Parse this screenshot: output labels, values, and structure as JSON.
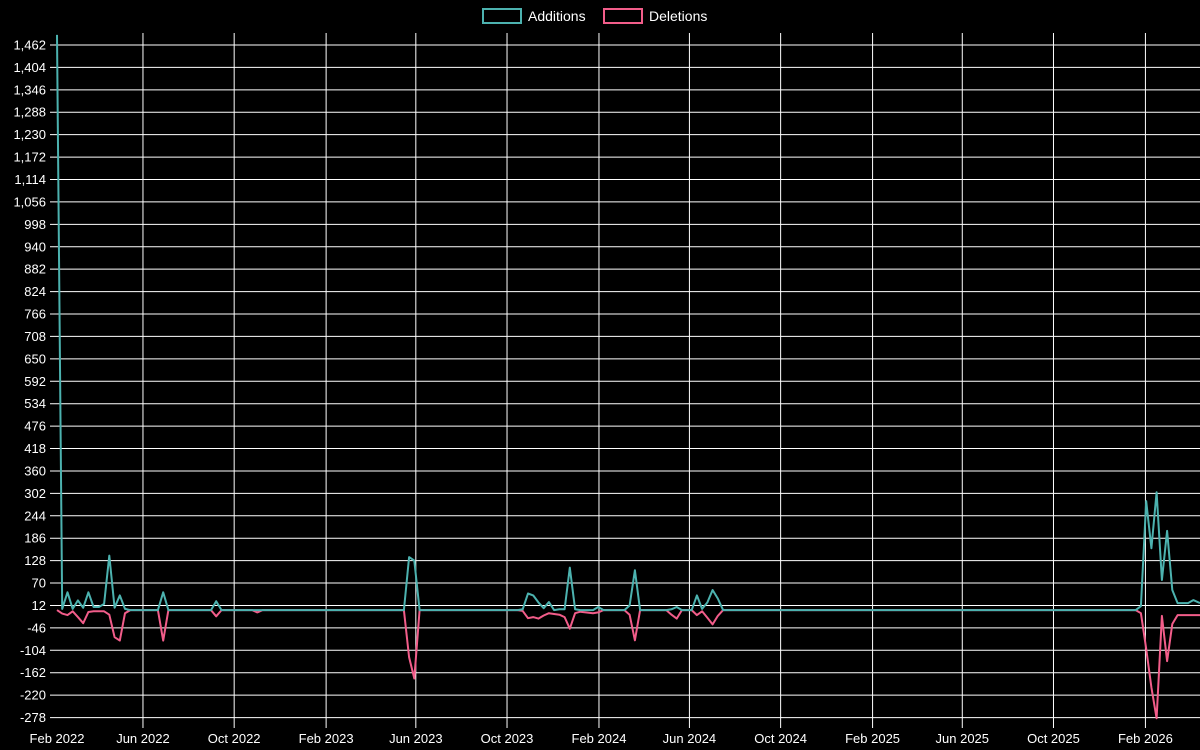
{
  "colors": {
    "background": "#000000",
    "grid": "#ffffff",
    "text": "#ffffff",
    "additions": "#4cb2af",
    "deletions": "#f25d8a"
  },
  "legend": {
    "items": [
      {
        "label": "Additions",
        "color": "#4cb2af"
      },
      {
        "label": "Deletions",
        "color": "#f25d8a"
      }
    ]
  },
  "chart_data": {
    "type": "line",
    "title": "",
    "xlabel": "",
    "ylabel": "",
    "x_axis": {
      "unit": "days since first week (Feb 2022)",
      "ticks": [
        {
          "day": 0,
          "label": "Feb 2022"
        },
        {
          "day": 115,
          "label": "Jun 2022"
        },
        {
          "day": 237,
          "label": "Oct 2022"
        },
        {
          "day": 360,
          "label": "Feb 2023"
        },
        {
          "day": 480,
          "label": "Jun 2023"
        },
        {
          "day": 602,
          "label": "Oct 2023"
        },
        {
          "day": 725,
          "label": "Feb 2024"
        },
        {
          "day": 846,
          "label": "Jun 2024"
        },
        {
          "day": 968,
          "label": "Oct 2024"
        },
        {
          "day": 1091,
          "label": "Feb 2025"
        },
        {
          "day": 1211,
          "label": "Jun 2025"
        },
        {
          "day": 1333,
          "label": "Oct 2025"
        },
        {
          "day": 1456,
          "label": "Feb 2026"
        }
      ],
      "xlim_days": [
        0,
        1529
      ]
    },
    "y_axis": {
      "ticks": [
        -278,
        -220,
        -162,
        -104,
        -46,
        12,
        70,
        128,
        186,
        244,
        302,
        360,
        418,
        476,
        534,
        592,
        650,
        708,
        766,
        824,
        882,
        940,
        998,
        1056,
        1114,
        1172,
        1230,
        1288,
        1346,
        1404,
        1462
      ],
      "ylim": [
        -305,
        1493
      ],
      "grid": true
    },
    "legend_position": "top-center",
    "series": [
      {
        "name": "Additions",
        "color": "#4cb2af",
        "points": [
          [
            0,
            1488
          ],
          [
            7,
            3
          ],
          [
            14,
            46
          ],
          [
            21,
            3
          ],
          [
            28,
            25
          ],
          [
            35,
            6
          ],
          [
            42,
            46
          ],
          [
            49,
            8
          ],
          [
            56,
            8
          ],
          [
            63,
            16
          ],
          [
            70,
            141
          ],
          [
            77,
            6
          ],
          [
            84,
            38
          ],
          [
            91,
            3
          ],
          [
            98,
            0
          ],
          [
            135,
            0
          ],
          [
            142,
            46
          ],
          [
            149,
            0
          ],
          [
            206,
            0
          ],
          [
            213,
            23
          ],
          [
            220,
            0
          ],
          [
            261,
            0
          ],
          [
            268,
            0
          ],
          [
            275,
            0
          ],
          [
            464,
            0
          ],
          [
            471,
            137
          ],
          [
            478,
            128
          ],
          [
            485,
            0
          ],
          [
            616,
            0
          ],
          [
            623,
            2
          ],
          [
            630,
            43
          ],
          [
            637,
            38
          ],
          [
            644,
            20
          ],
          [
            651,
            5
          ],
          [
            658,
            21
          ],
          [
            665,
            0
          ],
          [
            672,
            2
          ],
          [
            679,
            2
          ],
          [
            686,
            110
          ],
          [
            693,
            2
          ],
          [
            700,
            0
          ],
          [
            717,
            0
          ],
          [
            724,
            8
          ],
          [
            731,
            0
          ],
          [
            759,
            0
          ],
          [
            766,
            12
          ],
          [
            773,
            103
          ],
          [
            780,
            0
          ],
          [
            815,
            0
          ],
          [
            822,
            2
          ],
          [
            829,
            8
          ],
          [
            836,
            0
          ],
          [
            849,
            0
          ],
          [
            856,
            38
          ],
          [
            863,
            3
          ],
          [
            870,
            20
          ],
          [
            877,
            52
          ],
          [
            884,
            30
          ],
          [
            891,
            0
          ],
          [
            1443,
            0
          ],
          [
            1450,
            10
          ],
          [
            1457,
            282
          ],
          [
            1464,
            160
          ],
          [
            1471,
            305
          ],
          [
            1478,
            78
          ],
          [
            1485,
            205
          ],
          [
            1492,
            52
          ],
          [
            1499,
            18
          ],
          [
            1513,
            18
          ],
          [
            1520,
            26
          ],
          [
            1529,
            18
          ]
        ]
      },
      {
        "name": "Deletions",
        "color": "#f25d8a",
        "points": [
          [
            0,
            0
          ],
          [
            7,
            -9
          ],
          [
            14,
            -13
          ],
          [
            21,
            -3
          ],
          [
            28,
            -18
          ],
          [
            35,
            -34
          ],
          [
            42,
            -5
          ],
          [
            49,
            -3
          ],
          [
            56,
            -3
          ],
          [
            63,
            -3
          ],
          [
            70,
            -12
          ],
          [
            77,
            -70
          ],
          [
            84,
            -79
          ],
          [
            91,
            -8
          ],
          [
            98,
            0
          ],
          [
            135,
            0
          ],
          [
            142,
            -79
          ],
          [
            149,
            0
          ],
          [
            206,
            0
          ],
          [
            213,
            -16
          ],
          [
            220,
            0
          ],
          [
            261,
            0
          ],
          [
            268,
            -6
          ],
          [
            275,
            0
          ],
          [
            464,
            0
          ],
          [
            471,
            -122
          ],
          [
            478,
            -177
          ],
          [
            485,
            0
          ],
          [
            616,
            0
          ],
          [
            623,
            -2
          ],
          [
            630,
            -21
          ],
          [
            637,
            -18
          ],
          [
            644,
            -22
          ],
          [
            651,
            -14
          ],
          [
            658,
            -8
          ],
          [
            665,
            -10
          ],
          [
            672,
            -12
          ],
          [
            679,
            -18
          ],
          [
            686,
            -48
          ],
          [
            693,
            -8
          ],
          [
            700,
            -4
          ],
          [
            717,
            -8
          ],
          [
            724,
            -6
          ],
          [
            731,
            0
          ],
          [
            759,
            0
          ],
          [
            766,
            -12
          ],
          [
            773,
            -78
          ],
          [
            780,
            0
          ],
          [
            815,
            0
          ],
          [
            822,
            -12
          ],
          [
            829,
            -22
          ],
          [
            836,
            0
          ],
          [
            849,
            0
          ],
          [
            856,
            -13
          ],
          [
            863,
            -3
          ],
          [
            870,
            -20
          ],
          [
            877,
            -37
          ],
          [
            884,
            -15
          ],
          [
            891,
            0
          ],
          [
            1443,
            0
          ],
          [
            1450,
            -8
          ],
          [
            1457,
            -100
          ],
          [
            1464,
            -200
          ],
          [
            1471,
            -280
          ],
          [
            1478,
            -15
          ],
          [
            1485,
            -132
          ],
          [
            1492,
            -36
          ],
          [
            1499,
            -13
          ],
          [
            1513,
            -13
          ],
          [
            1520,
            -13
          ],
          [
            1529,
            -13
          ]
        ]
      }
    ]
  }
}
